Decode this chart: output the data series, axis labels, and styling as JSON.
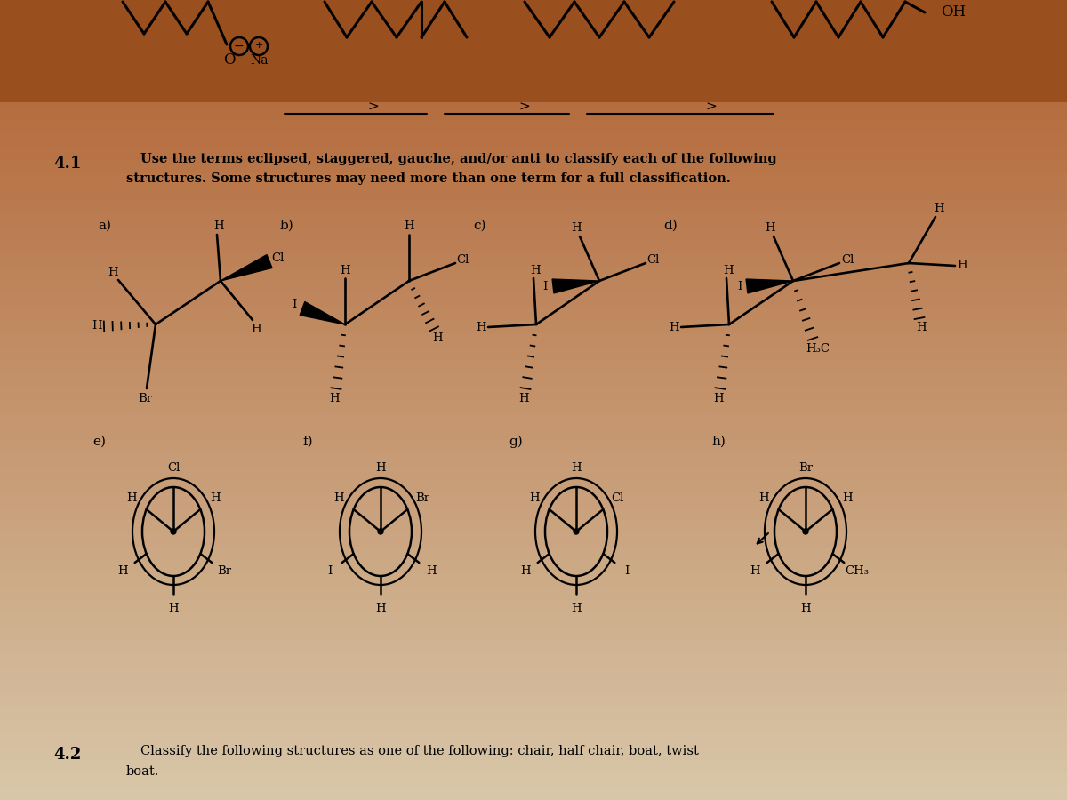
{
  "bg_top": "#b06030",
  "bg_bottom": "#d4c4a8",
  "bg_mid": "#c8966a",
  "text_color": "#111111",
  "fig_width": 12.0,
  "fig_height": 9.0,
  "dpi": 100,
  "section_41_num": "4.1",
  "section_42_num": "4.2",
  "text_41_1": "Use the terms eclipsed, staggered, gauche, and/or anti to classify each of the following",
  "text_41_2": "structures. Some structures may need more than one term for a full classification.",
  "text_42_1": "Classify the following structures as one of the following: chair, half chair, boat, twist",
  "text_42_2": "boat."
}
